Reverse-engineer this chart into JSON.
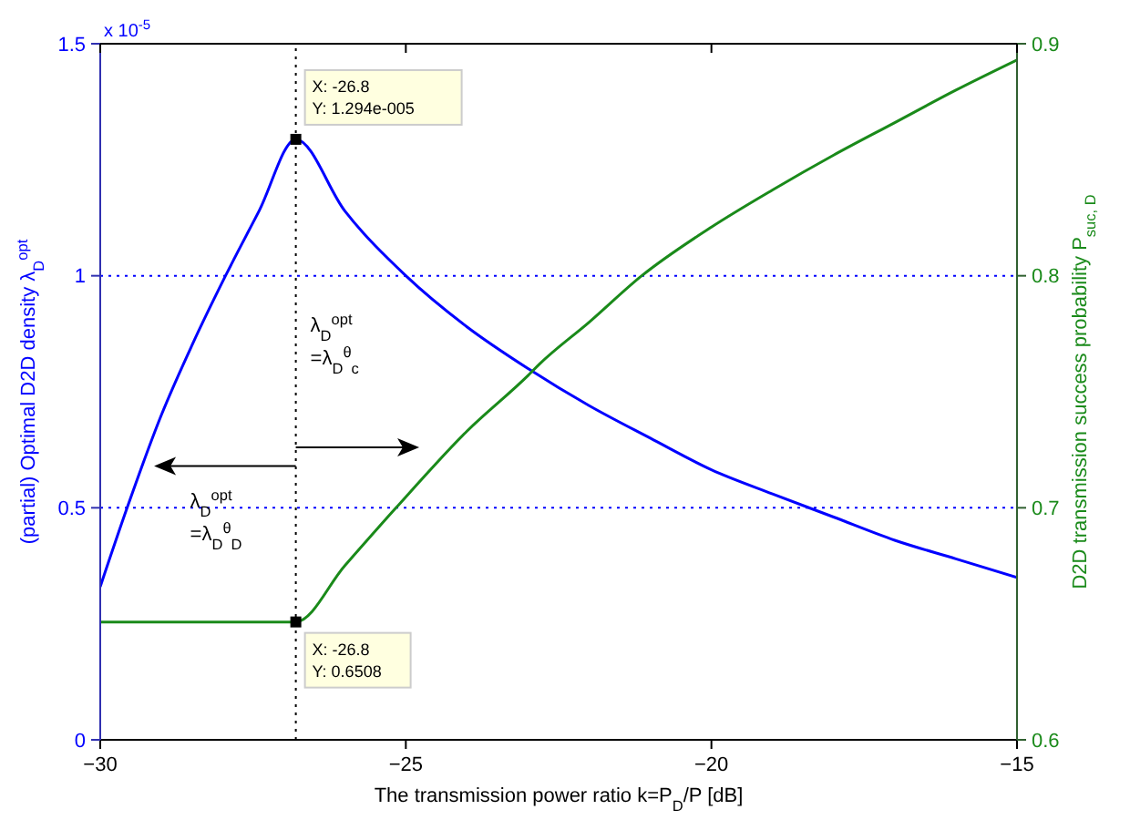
{
  "chart_data": {
    "type": "line",
    "xlabel": "The transmission power ratio k=P$_{D}$/P [dB]",
    "ylabel": "(partial) Optimal D2D density λ$_{D}$$^{opt}$",
    "y2label": "D2D transmission success probability P$_{suc, D}$",
    "xlim": [
      -30,
      -15
    ],
    "xticks": [
      -30,
      -25,
      -20,
      -15
    ],
    "ylim": [
      0,
      1.5
    ],
    "yticks": [
      0,
      0.5,
      1,
      1.5
    ],
    "y2lim": [
      0.6,
      0.9
    ],
    "y2ticks": [
      0.6,
      0.7,
      0.8,
      0.9
    ],
    "grid": "y",
    "marker": "none",
    "line_style": "solid",
    "legend": false,
    "series": [
      {
        "color": "#0000ff",
        "x": [
          -30,
          -29.56,
          -29,
          -28.5,
          -27.95,
          -27.4,
          -26.8,
          -26,
          -25,
          -24,
          -23,
          -22,
          -21,
          -20,
          -19,
          -18,
          -17,
          -16,
          -15
        ],
        "values": [
          0.33,
          0.5,
          0.7,
          0.85,
          1.0,
          1.14,
          1.294,
          1.14,
          1.0,
          0.89,
          0.8,
          0.72,
          0.65,
          0.582,
          0.53,
          0.48,
          0.43,
          0.39,
          0.35
        ]
      },
      {
        "color": "#1a8a1a",
        "axis": "y2",
        "x": [
          -30,
          -28,
          -26.8,
          -26,
          -25.16,
          -24,
          -23,
          -22.81,
          -22,
          -21.14,
          -20,
          -19,
          -18,
          -17,
          -16,
          -15
        ],
        "values": [
          0.6508,
          0.6508,
          0.6508,
          0.675,
          0.7,
          0.733,
          0.757,
          0.762,
          0.78,
          0.8,
          0.821,
          0.837,
          0.852,
          0.866,
          0.88,
          0.893
        ]
      }
    ],
    "ref_lines": [
      {
        "axis": "x",
        "value": -26.8,
        "color": "#000000",
        "line_style": "dotted"
      }
    ],
    "annotations": [
      "x 10$^{-5}$",
      {
        "text": "X: -26.8\nY: 1.294e-005",
        "x": -26.8,
        "y": 1.294
      },
      "X: -26.8\nY: 0.6508",
      "λ$_{D}$$^{opt}$\n=λ$_{D}$$^{θ}$$_{c}$",
      "λ$_{D}$$^{opt}$\n=λ$_{D}$$^{θ}$$_{D}$"
    ]
  }
}
